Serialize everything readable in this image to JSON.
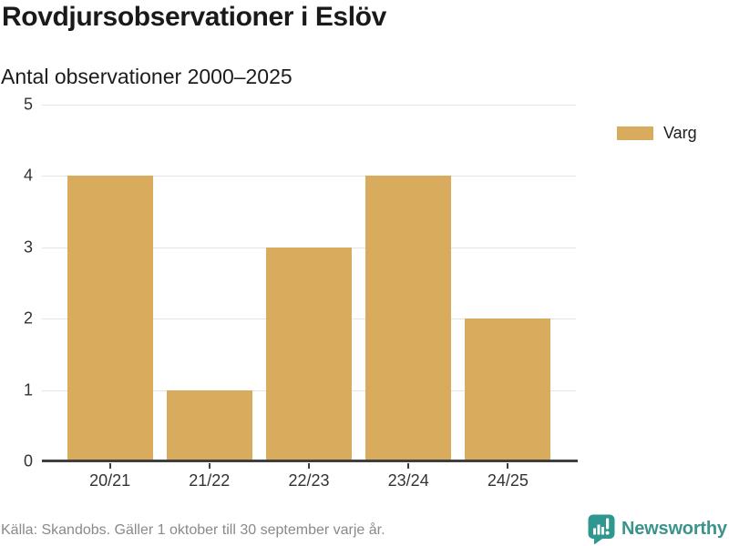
{
  "header": {
    "title": "Rovdjursobservationer i Eslöv",
    "subtitle": "Antal observationer 2000–2025"
  },
  "chart_data": {
    "type": "bar",
    "categories": [
      "20/21",
      "21/22",
      "22/23",
      "23/24",
      "24/25"
    ],
    "series": [
      {
        "name": "Varg",
        "values": [
          4,
          1,
          3,
          4,
          2
        ]
      }
    ],
    "title": "Rovdjursobservationer i Eslöv",
    "subtitle": "Antal observationer 2000–2025",
    "xlabel": "",
    "ylabel": "",
    "ylim": [
      0,
      5
    ],
    "yticks": [
      0,
      1,
      2,
      3,
      4,
      5
    ],
    "grid": true,
    "legend_position": "right",
    "bar_width_ratio": 0.86
  },
  "legend": {
    "items": [
      {
        "label": "Varg",
        "color": "#D9AB5C"
      }
    ]
  },
  "footer": {
    "source": "Källa: Skandobs. Gäller 1 oktober till 30 september varje år.",
    "brand": "Newsworthy"
  },
  "colors": {
    "bar": "#D9AB5C",
    "grid": "#E4E4E4",
    "axis": "#3F3F3F",
    "teal_icon": "#2E9790",
    "teal_text": "#3B938C"
  }
}
